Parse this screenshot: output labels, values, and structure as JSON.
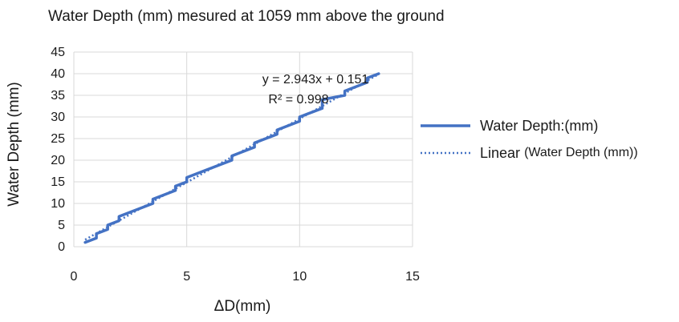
{
  "chart_data": {
    "type": "line",
    "title": "Water Depth (mm) mesured at 1059 mm above the ground",
    "xlabel": "ΔD(mm)",
    "ylabel": "Water Depth (mm)",
    "xlim": [
      0,
      15
    ],
    "ylim": [
      0,
      45
    ],
    "x_ticks": [
      "0",
      "5",
      "10",
      "15"
    ],
    "y_ticks": [
      "0",
      "5",
      "10",
      "15",
      "20",
      "25",
      "30",
      "35",
      "40",
      "45"
    ],
    "grid": true,
    "legend_placement": "right",
    "series": [
      {
        "name": "Water Depth:(mm)",
        "style": "solid",
        "color": "#4472c4",
        "x": [
          0.5,
          1.0,
          1.0,
          1.5,
          1.5,
          2.0,
          2.0,
          3.5,
          3.5,
          4.5,
          4.5,
          5.0,
          5.0,
          7.0,
          7.0,
          8.0,
          8.0,
          9.0,
          9.0,
          10.0,
          10.0,
          11.0,
          11.0,
          12.0,
          12.0,
          13.0,
          13.0,
          13.5
        ],
        "y": [
          1,
          2,
          3,
          4,
          5,
          6,
          7,
          10,
          11,
          13,
          14,
          15,
          16,
          20,
          21,
          23,
          24,
          26,
          27,
          29,
          30,
          32,
          34,
          35,
          36,
          38,
          39,
          40
        ]
      },
      {
        "name": "Linear (Water Depth (mm))",
        "style": "dotted",
        "color": "#4472c4",
        "type": "trendline",
        "slope": 2.943,
        "intercept": 0.151,
        "x": [
          0.5,
          13.5
        ]
      }
    ],
    "annotations": {
      "equation": "y = 2.943x + 0.151",
      "r_squared": "R² = 0.998"
    },
    "legend": {
      "series_1_label": "Water Depth:(mm)",
      "series_2_prefix": "Linear",
      "series_2_suffix": "(Water Depth (mm))"
    }
  }
}
